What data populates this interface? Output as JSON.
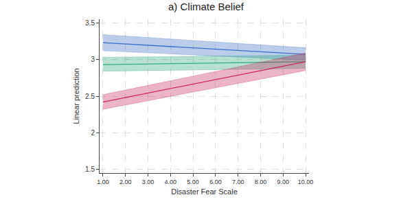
{
  "chart_data": {
    "type": "line",
    "title": "a) Climate Belief",
    "x_label": "Disaster Fear Scale",
    "y_label": "Linear prediction",
    "x": [
      1,
      10
    ],
    "series": [
      {
        "color": "#3b6fc6",
        "values": [
          3.23,
          3.07
        ],
        "lower": [
          3.12,
          2.99
        ],
        "upper": [
          3.34,
          3.16
        ]
      },
      {
        "color": "#2fa87a",
        "values": [
          2.93,
          2.97
        ],
        "lower": [
          2.84,
          2.88
        ],
        "upper": [
          3.03,
          3.06
        ]
      },
      {
        "color": "#c62a5c",
        "values": [
          2.42,
          2.97
        ],
        "lower": [
          2.32,
          2.85
        ],
        "upper": [
          2.52,
          3.09
        ]
      }
    ],
    "xlim": [
      0.85,
      10.15
    ],
    "ylim": [
      1.45,
      3.55
    ],
    "xticks": [
      {
        "value": 1,
        "label": "1.00"
      },
      {
        "value": 2,
        "label": "2.00"
      },
      {
        "value": 3,
        "label": "3.00"
      },
      {
        "value": 4,
        "label": "4.00"
      },
      {
        "value": 5,
        "label": "5.00"
      },
      {
        "value": 6,
        "label": "6.00"
      },
      {
        "value": 7,
        "label": "7.00"
      },
      {
        "value": 8,
        "label": "8.00"
      },
      {
        "value": 9,
        "label": "9.00"
      },
      {
        "value": 10,
        "label": "10.00"
      }
    ],
    "yticks": [
      1.5,
      2,
      2.5,
      3,
      3.5
    ],
    "grid": true
  }
}
